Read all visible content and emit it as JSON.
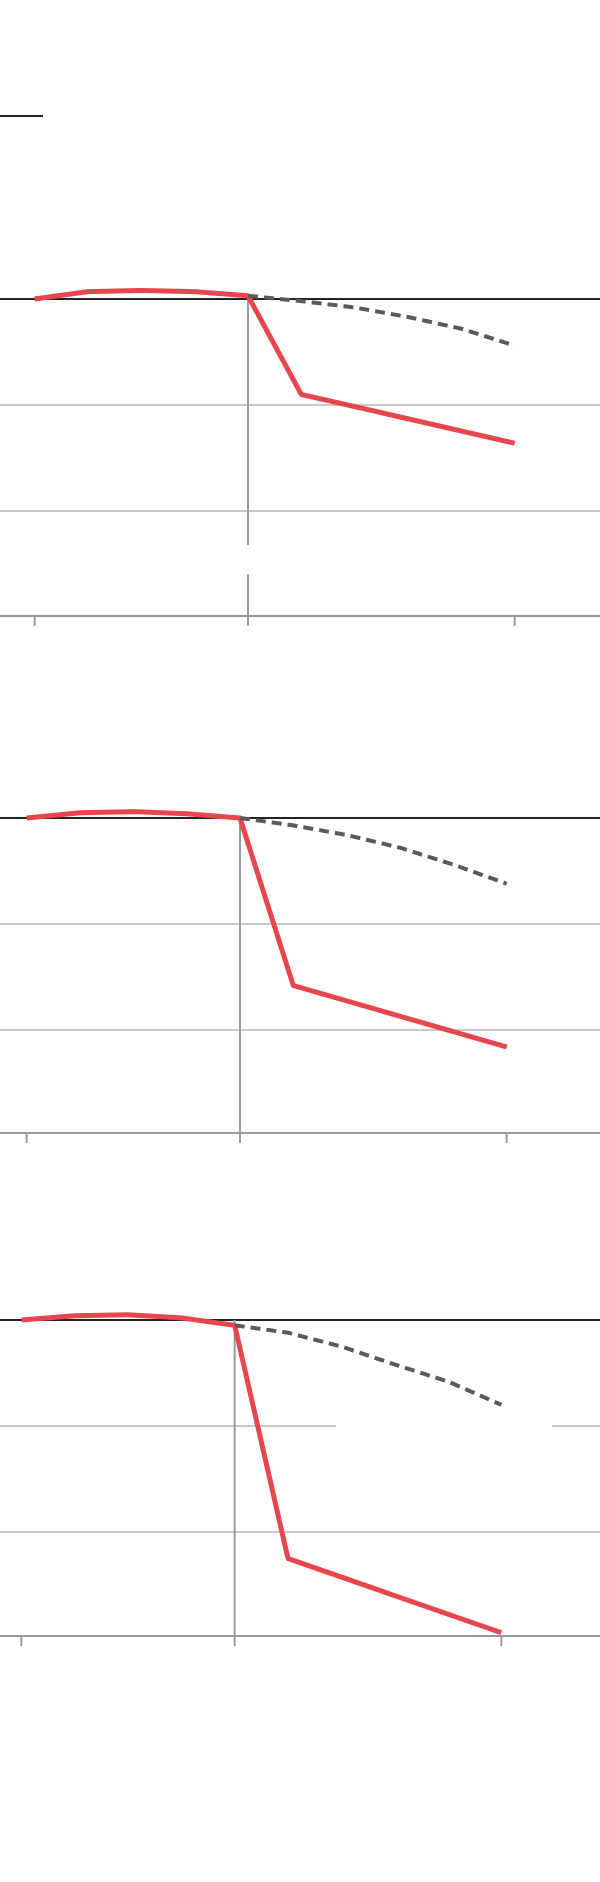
{
  "colors": {
    "background": "#ffffff",
    "actual_line": "#e8464e",
    "projected_line": "#5a5a5a",
    "baseline": "#222222",
    "gridline": "#c8c8c8",
    "axis": "#9a9a9a",
    "legend_swatch": "#222222"
  },
  "legend": {
    "swatch_style": "solid-dark-line"
  },
  "chart_data": [
    {
      "type": "line",
      "title": "",
      "xlabel": "",
      "ylabel": "",
      "x_ticks": [
        0,
        4,
        9
      ],
      "xlim": [
        -0.65,
        10.6
      ],
      "ylim": [
        -3,
        0
      ],
      "y_gridlines": [
        0,
        -1,
        -2
      ],
      "event_x": 4,
      "series": [
        {
          "style": "solid",
          "x": [
            0,
            1,
            2,
            3,
            4,
            5,
            9
          ],
          "y": [
            0.0,
            0.07,
            0.08,
            0.07,
            0.03,
            -0.9,
            -1.36
          ]
        },
        {
          "style": "dashed",
          "x": [
            4,
            5,
            6,
            7,
            8,
            9
          ],
          "y": [
            0.03,
            -0.02,
            -0.08,
            -0.17,
            -0.28,
            -0.44
          ]
        }
      ]
    },
    {
      "type": "line",
      "title": "",
      "xlabel": "",
      "ylabel": "",
      "x_ticks": [
        0,
        4,
        9
      ],
      "xlim": [
        -0.5,
        10.75
      ],
      "ylim": [
        -3,
        0
      ],
      "y_gridlines": [
        0,
        -1,
        -2
      ],
      "event_x": 4,
      "series": [
        {
          "style": "solid",
          "x": [
            0,
            1,
            2,
            3,
            4,
            5,
            9
          ],
          "y": [
            0.0,
            0.05,
            0.06,
            0.04,
            0.0,
            -1.58,
            -2.16
          ]
        },
        {
          "style": "dashed",
          "x": [
            4,
            5,
            6,
            7,
            8,
            9
          ],
          "y": [
            0.0,
            -0.07,
            -0.16,
            -0.28,
            -0.44,
            -0.62
          ]
        }
      ]
    },
    {
      "type": "line",
      "title": "",
      "xlabel": "",
      "ylabel": "",
      "x_ticks": [
        0,
        4,
        9
      ],
      "xlim": [
        -0.4,
        10.85
      ],
      "ylim": [
        -3,
        0
      ],
      "y_gridlines": [
        0,
        -1,
        -2
      ],
      "event_x": 4,
      "series": [
        {
          "style": "solid",
          "x": [
            0,
            1,
            2,
            3,
            4,
            5,
            9
          ],
          "y": [
            0.0,
            0.04,
            0.05,
            0.02,
            -0.05,
            -2.25,
            -2.95
          ]
        },
        {
          "style": "dashed",
          "x": [
            4,
            5,
            6,
            7,
            8,
            9
          ],
          "y": [
            -0.05,
            -0.12,
            -0.25,
            -0.42,
            -0.58,
            -0.8
          ]
        }
      ]
    }
  ]
}
